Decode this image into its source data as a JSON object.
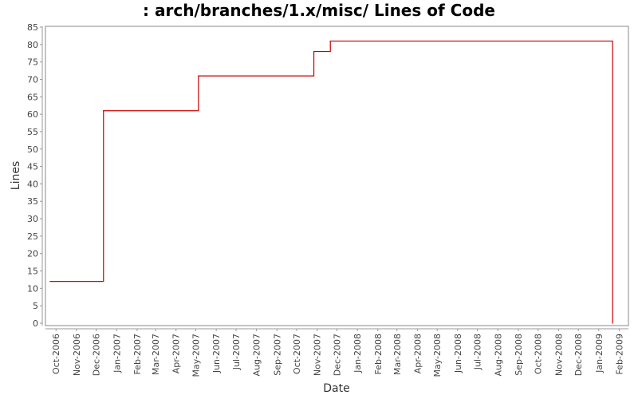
{
  "chart_data": {
    "type": "line",
    "title": ": arch/branches/1.x/misc/ Lines of Code",
    "xlabel": "Date",
    "ylabel": "Lines",
    "ylim": [
      0,
      85
    ],
    "yticks": [
      0,
      5,
      10,
      15,
      20,
      25,
      30,
      35,
      40,
      45,
      50,
      55,
      60,
      65,
      70,
      75,
      80,
      85
    ],
    "xlim": [
      "2006-09-15",
      "2009-02-15"
    ],
    "xticks": [
      {
        "date": "2006-10-01",
        "label": "Oct-2006"
      },
      {
        "date": "2006-11-01",
        "label": "Nov-2006"
      },
      {
        "date": "2006-12-01",
        "label": "Dec-2006"
      },
      {
        "date": "2007-01-01",
        "label": "Jan-2007"
      },
      {
        "date": "2007-02-01",
        "label": "Feb-2007"
      },
      {
        "date": "2007-03-01",
        "label": "Mar-2007"
      },
      {
        "date": "2007-04-01",
        "label": "Apr-2007"
      },
      {
        "date": "2007-05-01",
        "label": "May-2007"
      },
      {
        "date": "2007-06-01",
        "label": "Jun-2007"
      },
      {
        "date": "2007-07-01",
        "label": "Jul-2007"
      },
      {
        "date": "2007-08-01",
        "label": "Aug-2007"
      },
      {
        "date": "2007-09-01",
        "label": "Sep-2007"
      },
      {
        "date": "2007-10-01",
        "label": "Oct-2007"
      },
      {
        "date": "2007-11-01",
        "label": "Nov-2007"
      },
      {
        "date": "2007-12-01",
        "label": "Dec-2007"
      },
      {
        "date": "2008-01-01",
        "label": "Jan-2008"
      },
      {
        "date": "2008-02-01",
        "label": "Feb-2008"
      },
      {
        "date": "2008-03-01",
        "label": "Mar-2008"
      },
      {
        "date": "2008-04-01",
        "label": "Apr-2008"
      },
      {
        "date": "2008-05-01",
        "label": "May-2008"
      },
      {
        "date": "2008-06-01",
        "label": "Jun-2008"
      },
      {
        "date": "2008-07-01",
        "label": "Jul-2008"
      },
      {
        "date": "2008-08-01",
        "label": "Aug-2008"
      },
      {
        "date": "2008-09-01",
        "label": "Sep-2008"
      },
      {
        "date": "2008-10-01",
        "label": "Oct-2008"
      },
      {
        "date": "2008-11-01",
        "label": "Nov-2008"
      },
      {
        "date": "2008-12-01",
        "label": "Dec-2008"
      },
      {
        "date": "2009-01-01",
        "label": "Jan-2009"
      },
      {
        "date": "2009-02-01",
        "label": "Feb-2009"
      }
    ],
    "step": true,
    "grid": false,
    "legend": "none",
    "series": [
      {
        "color": "#cc0000",
        "points": [
          {
            "x": "2006-09-22",
            "y": 12
          },
          {
            "x": "2006-12-12",
            "y": 61
          },
          {
            "x": "2007-05-05",
            "y": 71
          },
          {
            "x": "2007-10-27",
            "y": 78
          },
          {
            "x": "2007-11-21",
            "y": 81
          },
          {
            "x": "2009-01-22",
            "y": 0
          }
        ]
      }
    ]
  }
}
